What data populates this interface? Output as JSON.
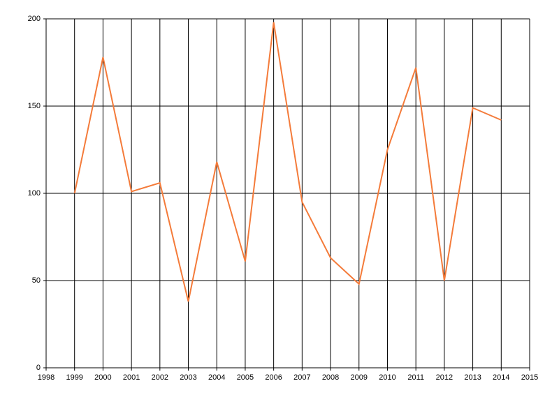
{
  "chart_data": {
    "type": "line",
    "x": [
      1999,
      2000,
      2001,
      2002,
      2003,
      2004,
      2005,
      2006,
      2007,
      2008,
      2009,
      2010,
      2011,
      2012,
      2013,
      2014
    ],
    "values": [
      100,
      178,
      101,
      106,
      38,
      118,
      61,
      198,
      95,
      63,
      48,
      125,
      172,
      50,
      149,
      142
    ],
    "color": "#f47b3a",
    "xlim": [
      1998,
      2015
    ],
    "xticks": [
      1998,
      1999,
      2000,
      2001,
      2002,
      2003,
      2004,
      2005,
      2006,
      2007,
      2008,
      2009,
      2010,
      2011,
      2012,
      2013,
      2014,
      2015
    ],
    "ylim": [
      0,
      200
    ],
    "yticks": [
      0,
      50,
      100,
      150,
      200
    ],
    "grid": true
  }
}
